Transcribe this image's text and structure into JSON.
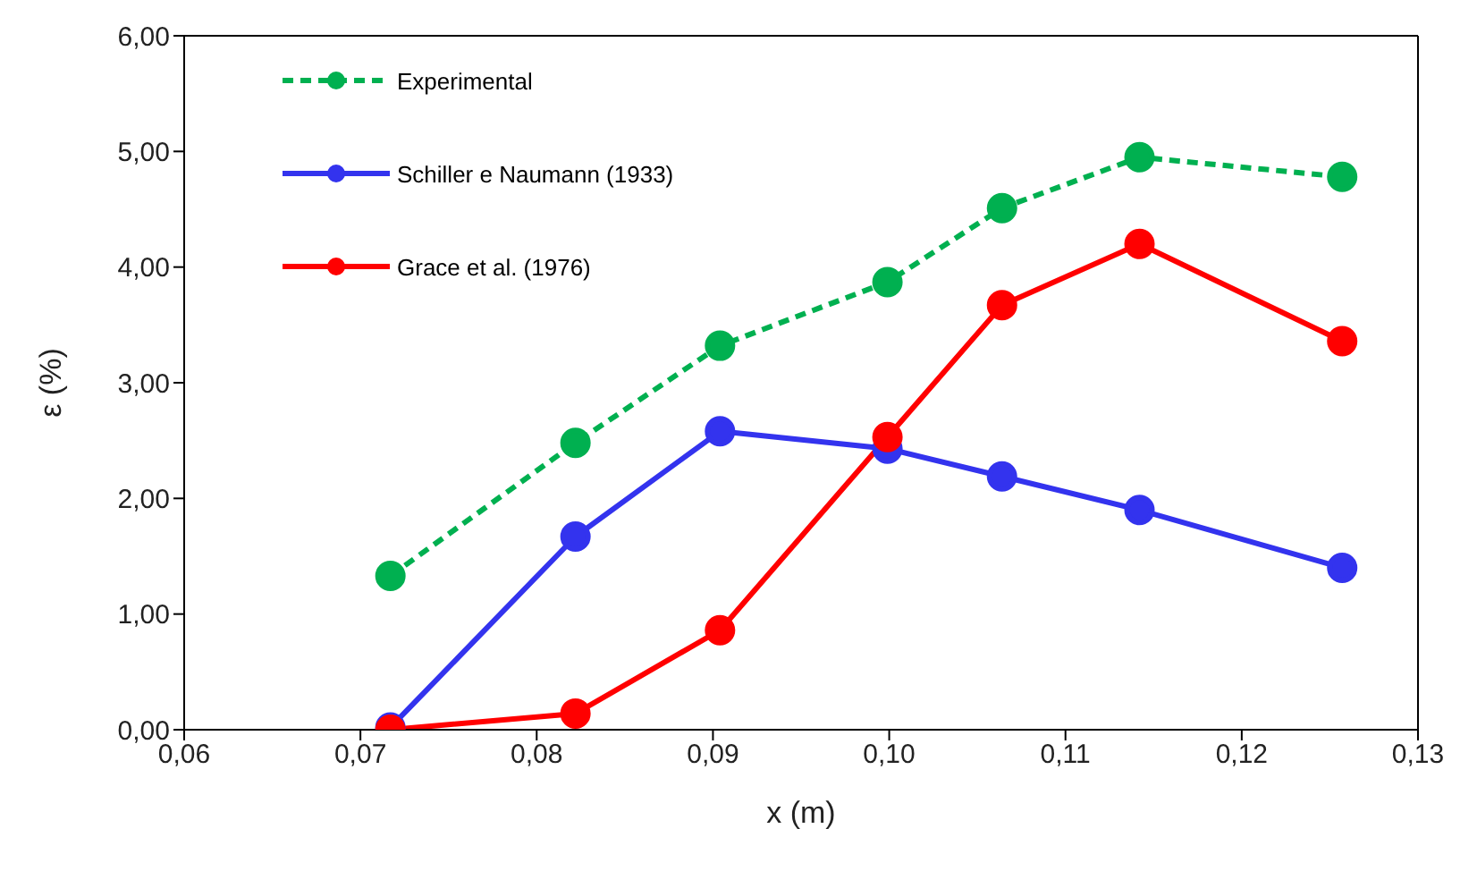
{
  "chart_data": {
    "type": "line",
    "xlabel": "x (m)",
    "ylabel": "ε (%)",
    "x": [
      0.0717,
      0.0822,
      0.0904,
      0.0999,
      0.1064,
      0.1142,
      0.1257
    ],
    "series": [
      {
        "name": "Experimental",
        "color": "#00b050",
        "line_style": "dashed",
        "values": [
          1.33,
          2.48,
          3.32,
          3.87,
          4.51,
          4.95,
          4.78
        ]
      },
      {
        "name": "Schiller e Naumann (1933)",
        "color": "#3333ee",
        "values": [
          0.02,
          1.67,
          2.58,
          2.43,
          2.19,
          1.9,
          1.4
        ]
      },
      {
        "name": "Grace et al. (1976)",
        "color": "#ff0000",
        "values": [
          0,
          0.14,
          0.86,
          2.53,
          3.67,
          4.2,
          3.36
        ]
      }
    ],
    "xlim": [
      0.06,
      0.13
    ],
    "xticks": [
      {
        "value": 0.06,
        "label": "0,06"
      },
      {
        "value": 0.07,
        "label": "0,07"
      },
      {
        "value": 0.08,
        "label": "0,08"
      },
      {
        "value": 0.09,
        "label": "0,09"
      },
      {
        "value": 0.1,
        "label": "0,10"
      },
      {
        "value": 0.11,
        "label": "0,11"
      },
      {
        "value": 0.12,
        "label": "0,12"
      },
      {
        "value": 0.13,
        "label": "0,13"
      }
    ],
    "ylim": [
      0,
      6
    ],
    "yticks": [
      {
        "value": 0,
        "label": "0,00"
      },
      {
        "value": 1,
        "label": "1,00"
      },
      {
        "value": 2,
        "label": "2,00"
      },
      {
        "value": 3,
        "label": "3,00"
      },
      {
        "value": 4,
        "label": "4,00"
      },
      {
        "value": 5,
        "label": "5,00"
      },
      {
        "value": 6,
        "label": "6,00"
      }
    ],
    "marker": "circle",
    "legend": "top left"
  }
}
